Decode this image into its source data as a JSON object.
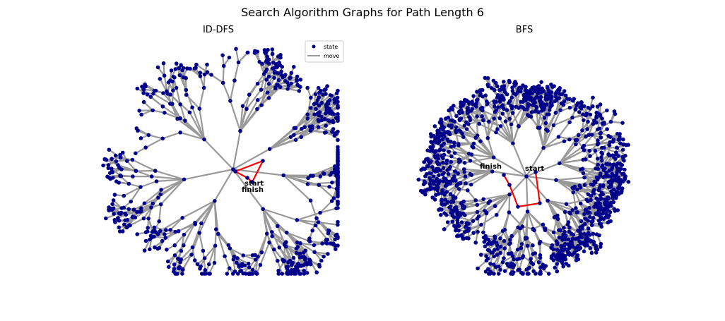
{
  "figure": {
    "title": "Search Algorithm Graphs for Path Length 6"
  },
  "legend": {
    "state_label": "state",
    "move_label": "move"
  },
  "colors": {
    "node": "#00008b",
    "edge": "#999999",
    "path": "#ff0000",
    "background": "#ffffff"
  },
  "panels": [
    {
      "title": "ID-DFS",
      "labels": {
        "start": "start",
        "finish": "finish"
      }
    },
    {
      "title": "BFS",
      "labels": {
        "start": "start",
        "finish": "finish"
      }
    }
  ]
}
